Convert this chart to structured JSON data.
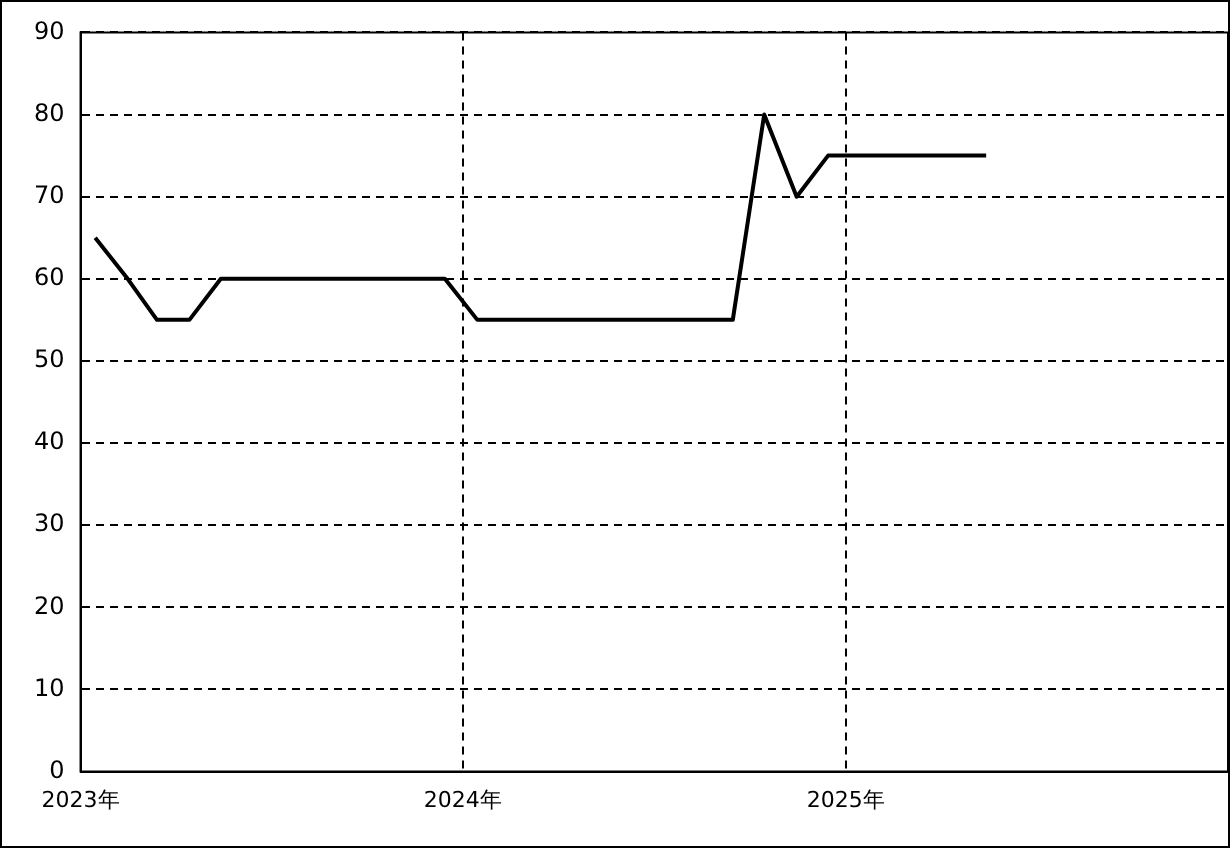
{
  "chart_data": {
    "type": "line",
    "x": [
      "2023-01-15",
      "2023-02-15",
      "2023-03-15",
      "2023-04-15",
      "2023-05-15",
      "2023-06-15",
      "2023-07-15",
      "2023-08-15",
      "2023-09-15",
      "2023-10-15",
      "2023-11-15",
      "2023-12-15",
      "2024-01-15",
      "2024-02-15",
      "2024-03-15",
      "2024-04-15",
      "2024-05-15",
      "2024-06-15",
      "2024-07-15",
      "2024-08-15",
      "2024-09-15",
      "2024-10-15",
      "2024-11-15",
      "2024-12-15",
      "2025-01-15",
      "2025-02-15",
      "2025-03-15",
      "2025-04-15",
      "2025-05-15"
    ],
    "series": [
      {
        "color": "#000000",
        "values": [
          65,
          60,
          55,
          55,
          60,
          60,
          60,
          60,
          60,
          60,
          60,
          60,
          55,
          55,
          55,
          55,
          55,
          55,
          55,
          55,
          55,
          80,
          70,
          75,
          75,
          75,
          75,
          75,
          75
        ]
      }
    ],
    "xlim": [
      "2023-01-01",
      "2026-01-01"
    ],
    "xticks": [
      {
        "value": "2023",
        "label": "2023年"
      },
      {
        "value": "2024",
        "label": "2024年"
      },
      {
        "value": "2025",
        "label": "2025年"
      }
    ],
    "ylim": [
      0,
      90
    ],
    "yticks": [
      0,
      10,
      20,
      30,
      40,
      50,
      60,
      70,
      80,
      90
    ],
    "grid": true,
    "legend": false,
    "marker": "none",
    "line_style": "solid"
  }
}
